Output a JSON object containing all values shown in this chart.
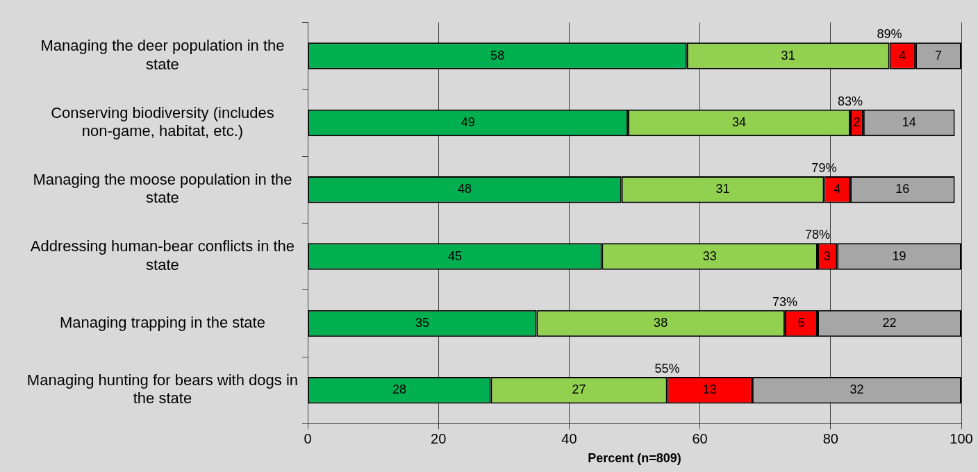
{
  "chart_data": {
    "type": "bar",
    "orientation": "horizontal",
    "stacked": true,
    "xlabel": "Percent (n=809)",
    "categories": [
      "Managing the deer population in the state",
      "Conserving biodiversity (includes non-game, habitat, etc.)",
      "Managing the moose population in the state",
      "Addressing human-bear conflicts in the state",
      "Managing trapping in the state",
      "Managing hunting for bears with dogs in the state"
    ],
    "series": [
      {
        "color": "#00b050",
        "values": [
          58,
          49,
          48,
          45,
          35,
          28
        ]
      },
      {
        "color": "#92d050",
        "values": [
          31,
          34,
          31,
          33,
          38,
          27
        ]
      },
      {
        "color": "#ff0000",
        "values": [
          4,
          2,
          4,
          3,
          5,
          13
        ]
      },
      {
        "color": "#a6a6a6",
        "values": [
          7,
          14,
          16,
          19,
          22,
          32
        ]
      }
    ],
    "xlim": [
      0,
      100
    ],
    "xticks": [
      0,
      20,
      40,
      60,
      80,
      100
    ],
    "grid": "x",
    "legend": false,
    "data_labels": true,
    "annotations": [
      {
        "text": "89%",
        "x": 89,
        "y": "Managing the deer population in the state"
      },
      {
        "text": "83%",
        "x": 83,
        "y": "Conserving biodiversity (includes non-game, habitat, etc.)"
      },
      {
        "text": "79%",
        "x": 79,
        "y": "Managing the moose population in the state"
      },
      {
        "text": "78%",
        "x": 78,
        "y": "Addressing human-bear conflicts in the state"
      },
      {
        "text": "73%",
        "x": 73,
        "y": "Managing trapping in the state"
      },
      {
        "text": "55%",
        "x": 55,
        "y": "Managing hunting for bears with dogs in the state"
      }
    ]
  }
}
